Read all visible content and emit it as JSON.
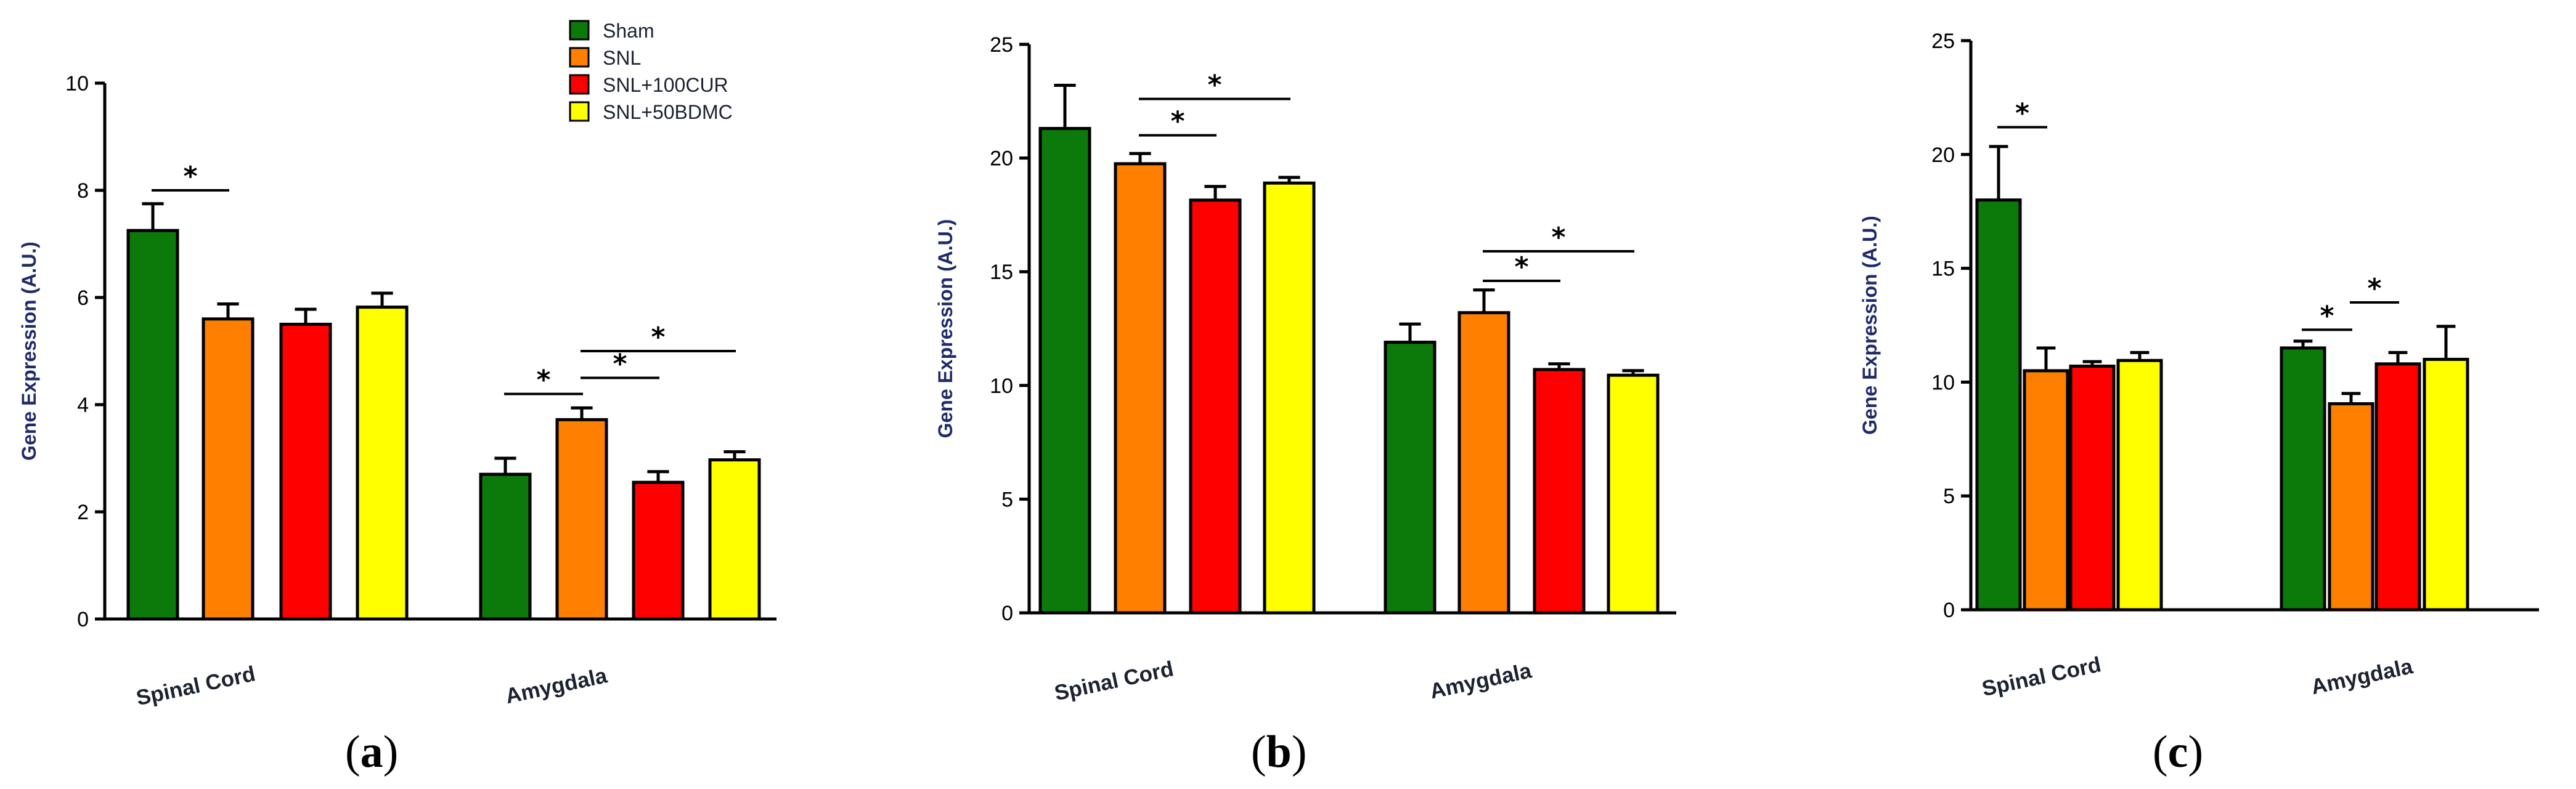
{
  "colors": {
    "Sham": "#0b7a0b",
    "SNL": "#ff7f00",
    "SNL+100CUR": "#ff0000",
    "SNL+50BDMC": "#ffff00"
  },
  "legend": {
    "entries": [
      "Sham",
      "SNL",
      "SNL+100CUR",
      "SNL+50BDMC"
    ]
  },
  "chart_data": [
    {
      "type": "bar",
      "panel": "a",
      "ylabel": "Gene Expression (A.U.)",
      "ylim": [
        0,
        10
      ],
      "yticks": [
        0,
        2,
        4,
        6,
        8,
        10
      ],
      "categories": [
        "Spinal Cord",
        "Amygdala"
      ],
      "series": [
        {
          "name": "Sham",
          "values": [
            7.25,
            2.7
          ],
          "errors": [
            0.5,
            0.3
          ]
        },
        {
          "name": "SNL",
          "values": [
            5.6,
            3.72
          ],
          "errors": [
            0.28,
            0.22
          ]
        },
        {
          "name": "SNL+100CUR",
          "values": [
            5.5,
            2.55
          ],
          "errors": [
            0.28,
            0.2
          ]
        },
        {
          "name": "SNL+50BDMC",
          "values": [
            5.82,
            2.97
          ],
          "errors": [
            0.26,
            0.15
          ]
        }
      ],
      "significance": [
        {
          "label": "*",
          "category": 0,
          "from": 0,
          "to": 1,
          "y": 8.0
        },
        {
          "label": "*",
          "category": 1,
          "from": 0,
          "to": 1,
          "y": 4.2
        },
        {
          "label": "*",
          "category": 1,
          "from": 1,
          "to": 2,
          "y": 4.5
        },
        {
          "label": "*",
          "category": 1,
          "from": 1,
          "to": 3,
          "y": 5.0
        }
      ]
    },
    {
      "type": "bar",
      "panel": "b",
      "ylabel": "Gene Expression (A.U.)",
      "ylim": [
        0,
        25
      ],
      "yticks": [
        0,
        5,
        10,
        15,
        20,
        25
      ],
      "categories": [
        "Spinal Cord",
        "Amygdala"
      ],
      "series": [
        {
          "name": "Sham",
          "values": [
            21.3,
            11.9
          ],
          "errors": [
            1.9,
            0.8
          ]
        },
        {
          "name": "SNL",
          "values": [
            19.75,
            13.2
          ],
          "errors": [
            0.45,
            1.0
          ]
        },
        {
          "name": "SNL+100CUR",
          "values": [
            18.15,
            10.7
          ],
          "errors": [
            0.6,
            0.25
          ]
        },
        {
          "name": "SNL+50BDMC",
          "values": [
            18.9,
            10.45
          ],
          "errors": [
            0.25,
            0.2
          ]
        }
      ],
      "significance": [
        {
          "label": "*",
          "category": 0,
          "from": 1,
          "to": 2,
          "y": 21.0
        },
        {
          "label": "*",
          "category": 0,
          "from": 1,
          "to": 3,
          "y": 22.6
        },
        {
          "label": "*",
          "category": 1,
          "from": 1,
          "to": 2,
          "y": 14.6
        },
        {
          "label": "*",
          "category": 1,
          "from": 1,
          "to": 3,
          "y": 15.9
        }
      ]
    },
    {
      "type": "bar",
      "panel": "c",
      "ylabel": "Gene Expression (A.U.)",
      "ylim": [
        0,
        25
      ],
      "yticks": [
        0,
        5,
        10,
        15,
        20,
        25
      ],
      "categories": [
        "Spinal Cord",
        "Amygdala"
      ],
      "series": [
        {
          "name": "Sham",
          "values": [
            18.0,
            11.5
          ],
          "errors": [
            2.35,
            0.3
          ]
        },
        {
          "name": "SNL",
          "values": [
            10.5,
            9.05
          ],
          "errors": [
            1.0,
            0.45
          ]
        },
        {
          "name": "SNL+100CUR",
          "values": [
            10.7,
            10.8
          ],
          "errors": [
            0.2,
            0.5
          ]
        },
        {
          "name": "SNL+50BDMC",
          "values": [
            10.95,
            11.0
          ],
          "errors": [
            0.35,
            1.45
          ]
        }
      ],
      "significance": [
        {
          "label": "*",
          "category": 0,
          "from": 0,
          "to": 1,
          "y": 21.2
        },
        {
          "label": "*",
          "category": 1,
          "from": 0,
          "to": 1,
          "y": 12.3
        },
        {
          "label": "*",
          "category": 1,
          "from": 1,
          "to": 2,
          "y": 13.5
        }
      ]
    }
  ],
  "panel_labels": [
    {
      "open": "(",
      "letter": "a",
      "close": ")"
    },
    {
      "open": "(",
      "letter": "b",
      "close": ")"
    },
    {
      "open": "(",
      "letter": "c",
      "close": ")"
    }
  ]
}
